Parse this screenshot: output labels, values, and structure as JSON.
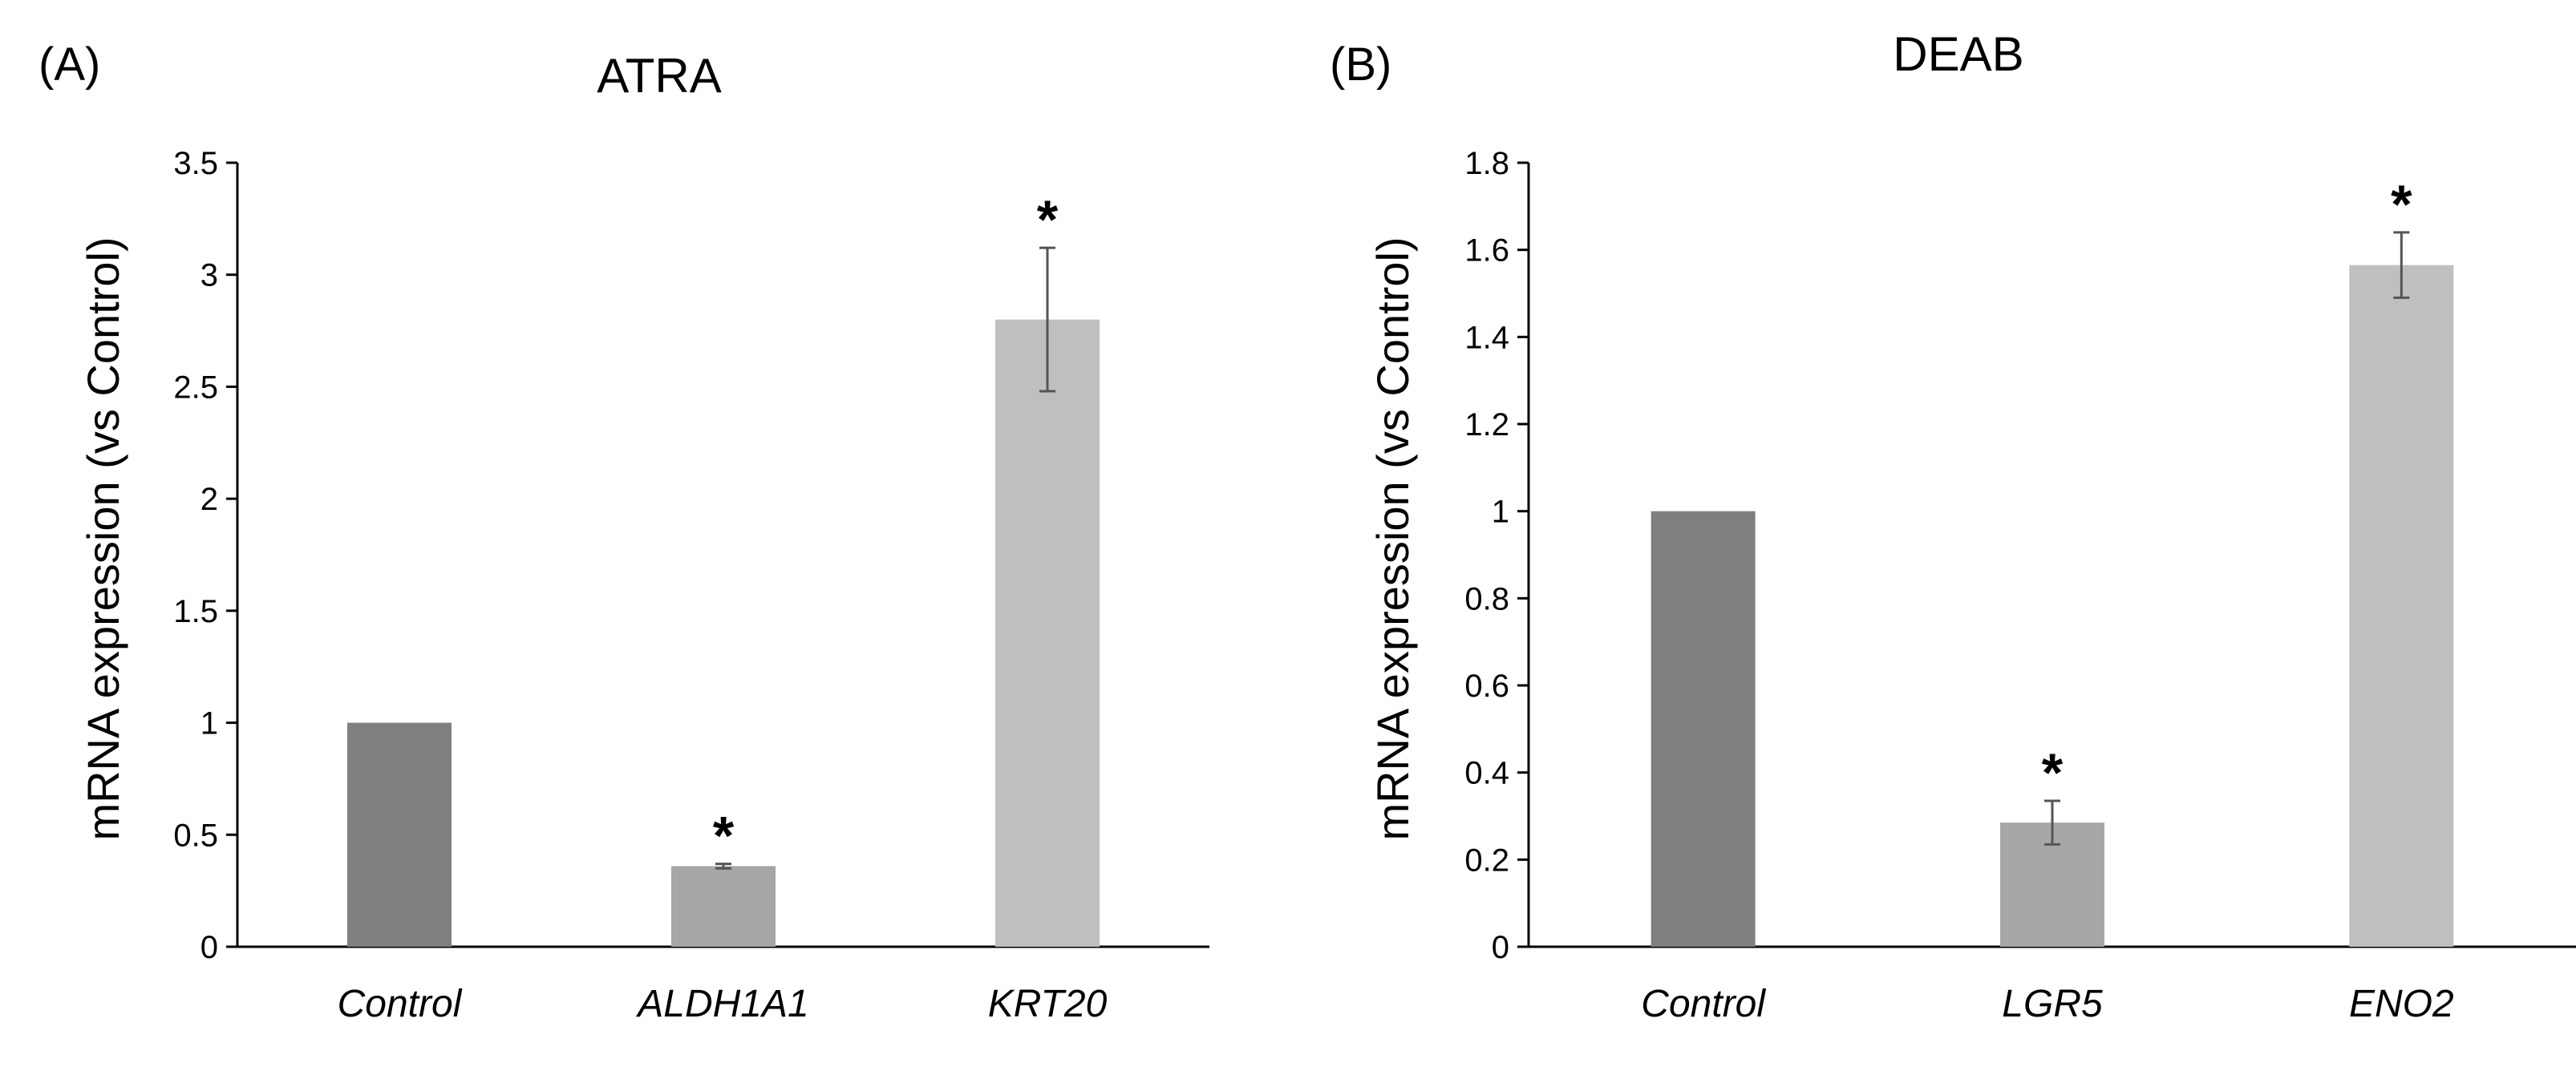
{
  "chart_data": [
    {
      "type": "bar",
      "panel_label": "(A)",
      "title": "ATRA",
      "xlabel": "",
      "ylabel": "mRNA expression (vs Control)",
      "ylim": [
        0,
        3.5
      ],
      "yticks": [
        0,
        0.5,
        1,
        1.5,
        2,
        2.5,
        3,
        3.5
      ],
      "ytick_labels": [
        "0",
        "0.5",
        "1",
        "1.5",
        "2",
        "2.5",
        "3",
        "3.5"
      ],
      "categories": [
        "Control",
        "ALDH1A1",
        "KRT20"
      ],
      "values": [
        1.0,
        0.36,
        2.8
      ],
      "errors": [
        0,
        0.01,
        0.32
      ],
      "significance": [
        "",
        "*",
        "*"
      ],
      "colors": [
        "#7f7f7f",
        "#a6a6a6",
        "#bfbfbf"
      ],
      "grid": false
    },
    {
      "type": "bar",
      "panel_label": "(B)",
      "title": "DEAB",
      "xlabel": "",
      "ylabel": "mRNA expression (vs Control)",
      "ylim": [
        0,
        1.8
      ],
      "yticks": [
        0,
        0.2,
        0.4,
        0.6,
        0.8,
        1,
        1.2,
        1.4,
        1.6,
        1.8
      ],
      "ytick_labels": [
        "0",
        "0.2",
        "0.4",
        "0.6",
        "0.8",
        "1",
        "1.2",
        "1.4",
        "1.6",
        "1.8"
      ],
      "categories": [
        "Control",
        "LGR5",
        "ENO2"
      ],
      "values": [
        1.0,
        0.285,
        1.565
      ],
      "errors": [
        0,
        0.05,
        0.075
      ],
      "significance": [
        "",
        "*",
        "*"
      ],
      "colors": [
        "#7f7f7f",
        "#a6a6a6",
        "#bfbfbf"
      ],
      "grid": false
    }
  ]
}
